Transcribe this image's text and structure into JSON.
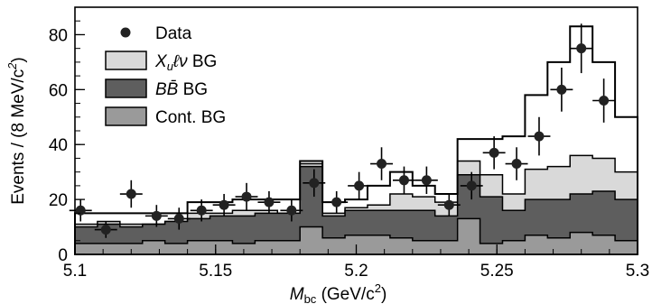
{
  "chart_data": {
    "type": "histogram",
    "x_range": [
      5.1,
      5.3
    ],
    "y_range": [
      0,
      90
    ],
    "bin_width": 0.008,
    "bin_edges_start": 5.1,
    "x_ticks": [
      5.1,
      5.15,
      5.2,
      5.25,
      5.3
    ],
    "x_tick_labels": [
      "5.1",
      "5.15",
      "5.2",
      "5.25",
      "5.3"
    ],
    "y_ticks": [
      0,
      20,
      40,
      60,
      80
    ],
    "y_tick_labels": [
      "0",
      "20",
      "40",
      "60",
      "80"
    ],
    "x_label": {
      "main": "M",
      "sub": "bc",
      "rest": " (GeV/c",
      "sup": "2",
      "end": ")"
    },
    "y_label": {
      "main": "Events / (8 MeV/c",
      "sup": "2",
      "end": ")"
    },
    "legend": [
      {
        "key": "data",
        "label": "Data",
        "marker": "circle"
      },
      {
        "key": "xulnu",
        "label": " BG",
        "label_math": "X",
        "sub": "u",
        "math_rest": "ℓν",
        "color": "#d9d9d9"
      },
      {
        "key": "bb",
        "label": " BG",
        "label_math": "BB̄",
        "color": "#5e5e5e"
      },
      {
        "key": "cont",
        "label": "Cont. BG",
        "color": "#9a9a9a"
      }
    ],
    "series": {
      "cont": [
        4,
        4,
        4,
        5,
        4,
        5,
        5,
        4,
        5,
        5,
        10,
        6,
        7,
        7,
        6,
        5,
        5,
        13,
        4,
        5,
        7,
        6,
        8,
        7,
        5
      ],
      "bb": [
        10,
        11,
        10,
        11,
        12,
        13,
        14,
        14,
        15,
        15,
        32,
        14,
        16,
        16,
        16,
        16,
        14,
        29,
        21,
        16,
        20,
        20,
        22,
        23,
        20
      ],
      "xulnu": [
        11,
        12,
        11,
        11,
        12,
        15,
        15,
        16,
        16,
        15,
        33,
        15,
        17,
        18,
        22,
        21,
        19,
        34,
        29,
        22,
        31,
        32,
        36,
        35,
        30
      ],
      "total": [
        15,
        15,
        15,
        15,
        15,
        19,
        19,
        20,
        20,
        20,
        34,
        19,
        20,
        25,
        30,
        25,
        22,
        42,
        42,
        43,
        58,
        70,
        83,
        70,
        50
      ]
    },
    "data_points": {
      "x": [
        5.102,
        5.111,
        5.12,
        5.129,
        5.137,
        5.145,
        5.153,
        5.161,
        5.169,
        5.177,
        5.185,
        5.193,
        5.201,
        5.209,
        5.217,
        5.225,
        5.233,
        5.241,
        5.249,
        5.257,
        5.265,
        5.273,
        5.28,
        5.288
      ],
      "y": [
        16,
        9,
        22,
        14,
        13,
        16,
        18,
        21,
        19,
        16,
        26,
        19,
        25,
        33,
        27,
        27,
        18,
        25,
        37,
        33,
        43,
        60,
        75,
        56
      ],
      "err": [
        4,
        3,
        5,
        4,
        4,
        4,
        4,
        5,
        4,
        4,
        5,
        4,
        5,
        6,
        5,
        5,
        4,
        5,
        6,
        6,
        7,
        8,
        9,
        8
      ]
    }
  }
}
